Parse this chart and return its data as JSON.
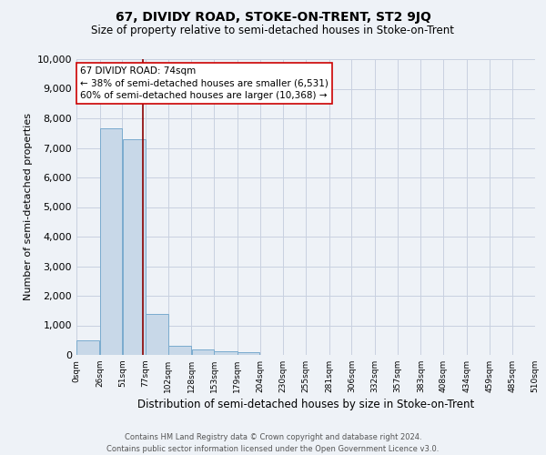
{
  "title": "67, DIVIDY ROAD, STOKE-ON-TRENT, ST2 9JQ",
  "subtitle": "Size of property relative to semi-detached houses in Stoke-on-Trent",
  "xlabel": "Distribution of semi-detached houses by size in Stoke-on-Trent",
  "ylabel": "Number of semi-detached properties",
  "footer_line1": "Contains HM Land Registry data © Crown copyright and database right 2024.",
  "footer_line2": "Contains public sector information licensed under the Open Government Licence v3.0.",
  "annotation_title": "67 DIVIDY ROAD: 74sqm",
  "annotation_line1": "← 38% of semi-detached houses are smaller (6,531)",
  "annotation_line2": "60% of semi-detached houses are larger (10,368) →",
  "property_size_sqm": 74,
  "bin_edges": [
    0,
    26,
    51,
    77,
    102,
    128,
    153,
    179,
    204,
    230,
    255,
    281,
    306,
    332,
    357,
    383,
    408,
    434,
    459,
    485,
    510
  ],
  "bar_heights": [
    500,
    7650,
    7280,
    1370,
    320,
    175,
    110,
    90,
    0,
    0,
    0,
    0,
    0,
    0,
    0,
    0,
    0,
    0,
    0,
    0
  ],
  "bar_color": "#c8d8e8",
  "bar_edge_color": "#7aabce",
  "vline_color": "#8b0000",
  "vline_x": 74,
  "ylim": [
    0,
    10000
  ],
  "yticks": [
    0,
    1000,
    2000,
    3000,
    4000,
    5000,
    6000,
    7000,
    8000,
    9000,
    10000
  ],
  "grid_color": "#c8d0e0",
  "annotation_box_color": "#ffffff",
  "annotation_box_edge": "#cc0000",
  "background_color": "#eef2f7",
  "title_fontsize": 10,
  "subtitle_fontsize": 8.5,
  "ylabel_fontsize": 8,
  "xlabel_fontsize": 8.5,
  "ytick_fontsize": 8,
  "xtick_fontsize": 6.5,
  "footer_fontsize": 6,
  "ann_fontsize": 7.5
}
